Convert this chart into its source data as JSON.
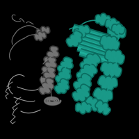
{
  "background_color": "#000000",
  "teal_color": "#1a9b8a",
  "gray_color": "#7a7a7a",
  "teal_dark": "#0a6b5e",
  "gray_dark": "#404040",
  "teal_light": "#22c4ae",
  "gray_light": "#aaaaaa",
  "fig_width": 2.0,
  "fig_height": 2.0,
  "dpi": 100
}
